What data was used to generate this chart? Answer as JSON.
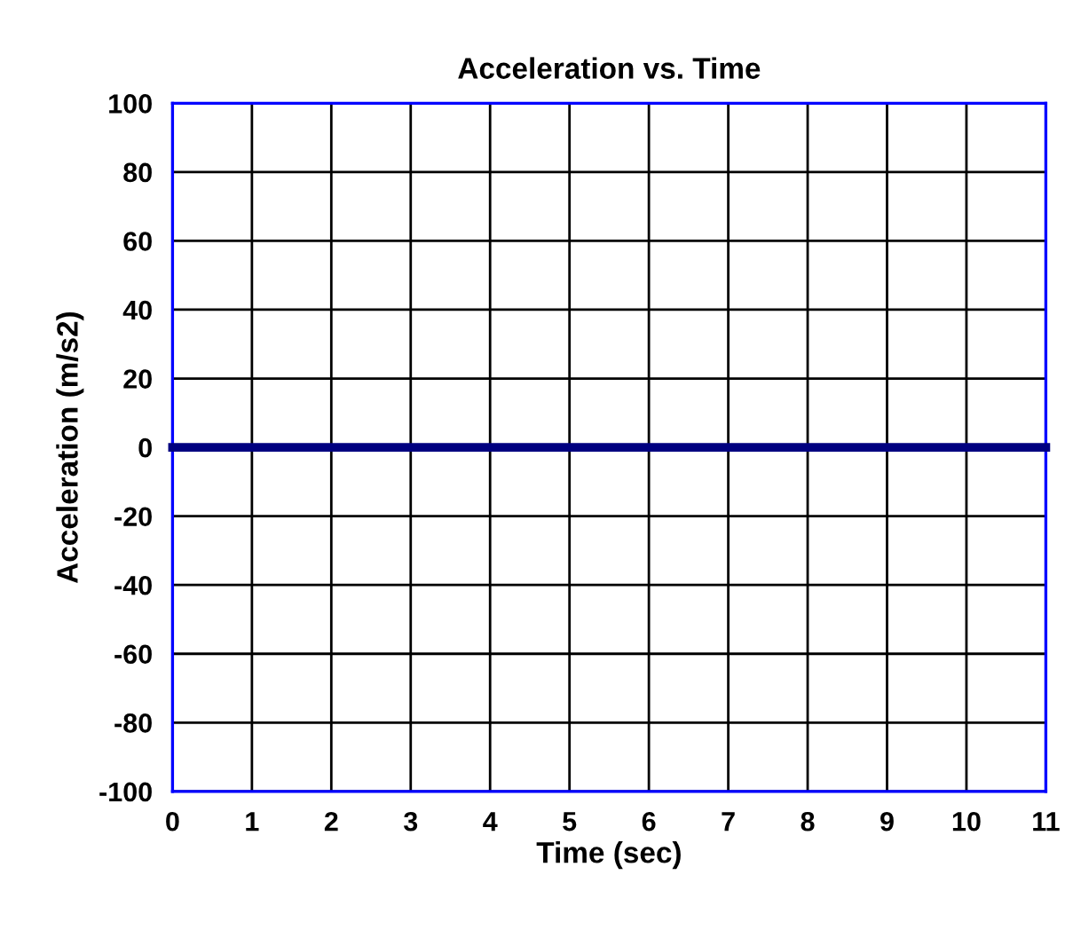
{
  "chart_data": {
    "type": "line",
    "title": "Acceleration vs. Time",
    "xlabel": "Time (sec)",
    "ylabel": "Acceleration (m/s2)",
    "x": [
      0,
      11
    ],
    "series": [
      {
        "color": "#000080",
        "values": [
          0,
          0
        ]
      }
    ],
    "xlim": [
      0,
      11
    ],
    "xticks": [
      0,
      1,
      2,
      3,
      4,
      5,
      6,
      7,
      8,
      9,
      10,
      11
    ],
    "ylim": [
      -100,
      100
    ],
    "yticks": [
      -100,
      -80,
      -60,
      -40,
      -20,
      0,
      20,
      40,
      60,
      80,
      100
    ],
    "grid": true,
    "marker": "none",
    "line_style": "solid",
    "legend": false
  }
}
